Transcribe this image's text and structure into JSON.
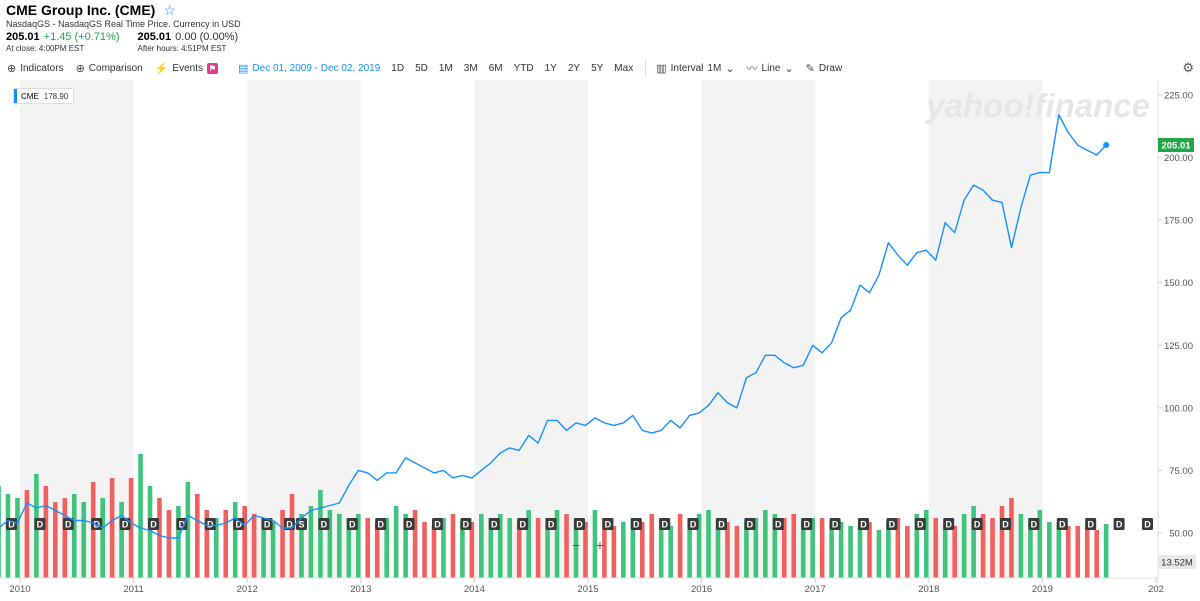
{
  "header": {
    "title": "CME Group Inc. (CME)",
    "subtitle": "NasdaqGS - NasdaqGS Real Time Price. Currency in USD",
    "close_price": "205.01",
    "close_change": "+1.45 (+0.71%)",
    "close_note": "At close: 4:00PM EST",
    "after_price": "205.01",
    "after_change": "0.00 (0.00%)",
    "after_note": "After hours: 4:51PM EST"
  },
  "toolbar": {
    "indicators": "Indicators",
    "comparison": "Comparison",
    "events": "Events",
    "date_range": "Dec 01, 2009 - Dec 02, 2019",
    "periods": [
      "1D",
      "5D",
      "1M",
      "3M",
      "6M",
      "YTD",
      "1Y",
      "2Y",
      "5Y",
      "Max"
    ],
    "interval_label": "Interval",
    "interval_value": "1M",
    "chart_type": "Line",
    "draw": "Draw"
  },
  "legend_badge": {
    "symbol": "CME",
    "value": "178.90"
  },
  "watermark": "yahoo!finance",
  "colors": {
    "line": "#188fff",
    "up": "#3fc37d",
    "down": "#f0605f",
    "last_price": "#21a648",
    "shade": "#f3f3f3"
  },
  "chart_data": {
    "type": "line",
    "title": "",
    "x_tick_labels": [
      "2010",
      "2011",
      "2012",
      "2013",
      "2014",
      "2015",
      "2016",
      "2017",
      "2018",
      "2019",
      "202"
    ],
    "y_tick_labels": [
      "225.00",
      "200.00",
      "175.00",
      "150.00",
      "125.00",
      "100.00",
      "75.00",
      "50.00"
    ],
    "ylim": [
      47,
      228
    ],
    "grid": false,
    "last_price_label": "205.01",
    "volume_label": "13.52M",
    "dividend_marker": "D",
    "split_marker": "S",
    "series": [
      {
        "name": "CME",
        "x_start": "Dec 2009",
        "interval": "1M",
        "values": [
          67,
          64,
          57,
          59,
          62,
          65,
          63,
          57,
          56,
          51,
          52,
          55,
          54,
          62,
          60,
          61,
          59,
          57,
          55,
          55,
          54,
          52,
          55,
          57,
          54,
          52,
          51,
          49,
          48,
          48,
          57,
          55,
          53,
          53,
          54,
          56,
          53,
          57,
          56,
          55,
          52,
          52,
          56,
          59,
          60,
          61,
          62,
          69,
          75,
          74,
          71,
          74,
          74,
          80,
          78,
          76,
          74,
          75,
          72,
          73,
          72,
          75,
          78,
          82,
          84,
          83,
          89,
          86,
          95,
          95,
          91,
          94,
          93,
          96,
          94,
          93,
          94,
          97,
          91,
          90,
          91,
          95,
          92,
          97,
          98,
          101,
          106,
          102,
          100,
          112,
          114,
          121,
          121,
          118,
          116,
          117,
          125,
          122,
          126,
          136,
          139,
          149,
          146,
          153,
          166,
          161,
          157,
          162,
          163,
          159,
          174,
          170,
          183,
          189,
          187,
          183,
          182,
          164,
          180,
          193,
          194,
          194,
          217,
          210,
          205,
          203,
          201,
          205.01
        ]
      }
    ],
    "volume": {
      "unit": "M",
      "values": [
        23,
        27,
        31,
        28,
        26,
        28,
        29,
        20,
        22,
        25,
        23,
        21,
        20,
        22,
        26,
        23,
        19,
        20,
        21,
        19,
        24,
        20,
        25,
        19,
        25,
        31,
        23,
        20,
        17,
        18,
        24,
        21,
        17,
        15,
        17,
        19,
        18,
        16,
        15,
        14,
        17,
        21,
        16,
        18,
        22,
        17,
        16,
        15,
        16,
        15,
        14,
        15,
        18,
        16,
        17,
        14,
        13,
        15,
        16,
        14,
        14,
        16,
        15,
        16,
        15,
        14,
        17,
        15,
        15,
        17,
        16,
        15,
        14,
        17,
        15,
        13,
        14,
        15,
        14,
        16,
        15,
        13,
        16,
        15,
        16,
        17,
        15,
        14,
        13,
        14,
        15,
        17,
        16,
        15,
        16,
        14,
        15,
        15,
        14,
        14,
        13,
        13,
        14,
        12,
        14,
        15,
        13,
        16,
        17,
        15,
        13,
        13,
        16,
        18,
        16,
        15,
        18,
        20,
        16,
        15,
        17,
        14,
        14,
        13,
        13,
        13,
        12,
        13.52
      ],
      "up": [
        1,
        1,
        1,
        1,
        0,
        0,
        0,
        1,
        1,
        0,
        1,
        1,
        1,
        0,
        1,
        0,
        0,
        0,
        1,
        1,
        0,
        1,
        0,
        1,
        0,
        1,
        1,
        0,
        0,
        1,
        1,
        0,
        0,
        1,
        0,
        1,
        0,
        0,
        1,
        1,
        0,
        0,
        1,
        1,
        1,
        1,
        1,
        1,
        1,
        0,
        0,
        1,
        1,
        1,
        0,
        0,
        0,
        1,
        0,
        1,
        0,
        1,
        1,
        1,
        1,
        0,
        1,
        0,
        1,
        1,
        0,
        1,
        0,
        1,
        0,
        0,
        1,
        1,
        0,
        0,
        1,
        1,
        0,
        1,
        1,
        1,
        1,
        0,
        0,
        1,
        1,
        1,
        1,
        0,
        0,
        1,
        1,
        0,
        1,
        1,
        1,
        1,
        0,
        1,
        1,
        0,
        0,
        1,
        1,
        0,
        1,
        0,
        1,
        1,
        0,
        0,
        0,
        0,
        1,
        1,
        1,
        1,
        1,
        0,
        0,
        0,
        0,
        1
      ]
    }
  }
}
